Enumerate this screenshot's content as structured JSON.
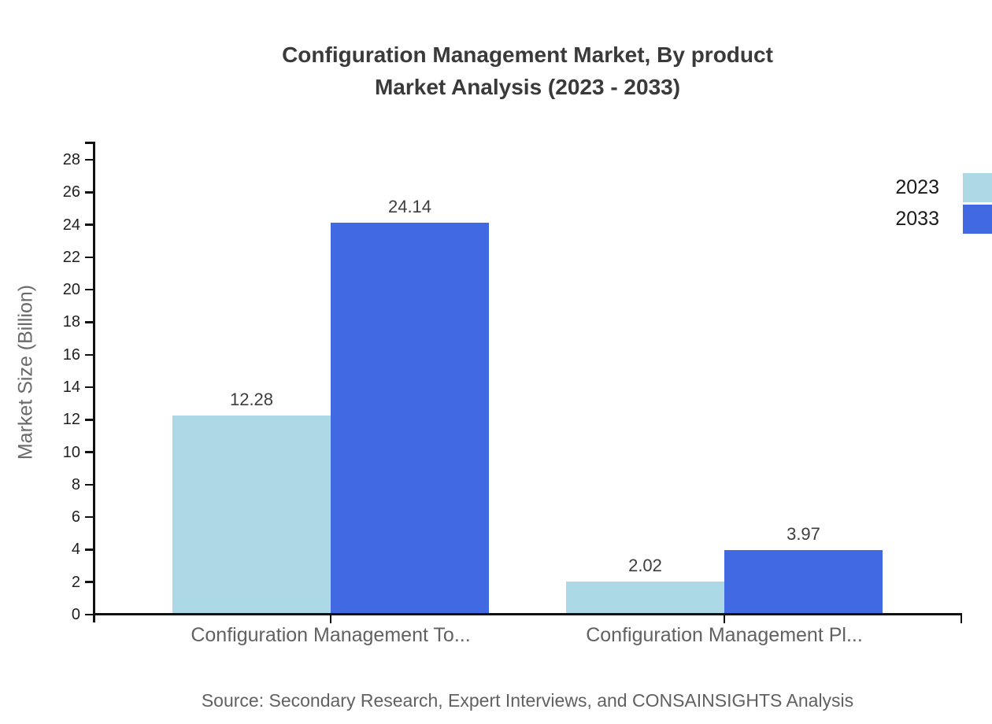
{
  "title": {
    "line1": "Configuration Management Market, By product",
    "line2": "Market Analysis (2023 - 2033)"
  },
  "source": {
    "text": "Source: Secondary Research, Expert Interviews, and CONSAINSIGHTS Analysis"
  },
  "chart_data": {
    "type": "bar",
    "title": "Configuration Management Market, By product Market Analysis (2023 - 2033)",
    "categories": [
      "Configuration Management To...",
      "Configuration Management Pl..."
    ],
    "series": [
      {
        "name": "2023",
        "color": "#ADD8E6",
        "values": [
          12.28,
          2.02
        ]
      },
      {
        "name": "2033",
        "color": "#4169E1",
        "values": [
          24.14,
          3.97
        ]
      }
    ],
    "xlabel": "",
    "ylabel": "Market Size (Billion)",
    "ylim": [
      0,
      28
    ],
    "ytick_step": 2,
    "yticks": [
      0,
      2,
      4,
      6,
      8,
      10,
      12,
      14,
      16,
      18,
      20,
      22,
      24,
      26,
      28
    ],
    "grid": false,
    "legend_position": "top-right",
    "value_labels": [
      {
        "category": "Configuration Management To...",
        "series": "2023",
        "label": "12.28"
      },
      {
        "category": "Configuration Management To...",
        "series": "2033",
        "label": "24.14"
      },
      {
        "category": "Configuration Management Pl...",
        "series": "2023",
        "label": "2.02"
      },
      {
        "category": "Configuration Management Pl...",
        "series": "2033",
        "label": "3.97"
      }
    ]
  },
  "legend": {
    "entries": [
      {
        "label": "2023",
        "color": "#ADD8E6"
      },
      {
        "label": "2033",
        "color": "#4169E1"
      }
    ]
  },
  "colors": {
    "series_2023": "#ADD8E6",
    "series_2033": "#4169E1",
    "axis": "#111111",
    "title_text": "#3a3a3a",
    "muted_text": "#616161"
  }
}
